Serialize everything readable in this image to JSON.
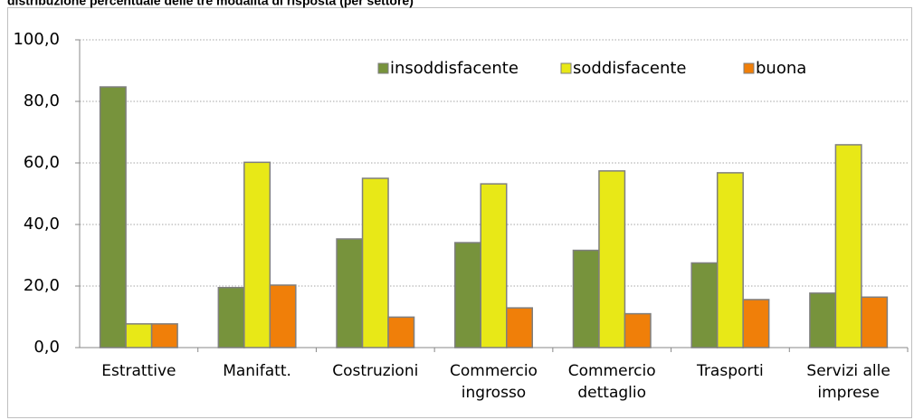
{
  "chart_data": {
    "type": "bar",
    "title": "distribuzione percentuale delle tre modalità di risposta (per settore)",
    "categories": [
      "Estrattive",
      "Manifatt.",
      "Costruzioni",
      "Commercio ingrosso",
      "Commercio dettaglio",
      "Trasporti",
      "Servizi alle imprese"
    ],
    "series": [
      {
        "name": "insoddisfacente",
        "color": "#77933c",
        "values": [
          84.7,
          19.5,
          35.3,
          34.1,
          31.6,
          27.5,
          17.7
        ]
      },
      {
        "name": "soddisfacente",
        "color": "#e8e817",
        "values": [
          7.7,
          60.2,
          55.0,
          53.2,
          57.4,
          56.8,
          65.9
        ]
      },
      {
        "name": "buona",
        "color": "#f07f09",
        "values": [
          7.7,
          20.3,
          9.9,
          12.9,
          11.0,
          15.6,
          16.4
        ]
      }
    ],
    "ylim": [
      0,
      100
    ],
    "yticks": [
      {
        "value": 0,
        "label": "0,0"
      },
      {
        "value": 20,
        "label": "20,0"
      },
      {
        "value": 40,
        "label": "40,0"
      },
      {
        "value": 60,
        "label": "60,0"
      },
      {
        "value": 80,
        "label": "80,0"
      },
      {
        "value": 100,
        "label": "100,0"
      }
    ],
    "grid": true,
    "legend": "top-right"
  }
}
